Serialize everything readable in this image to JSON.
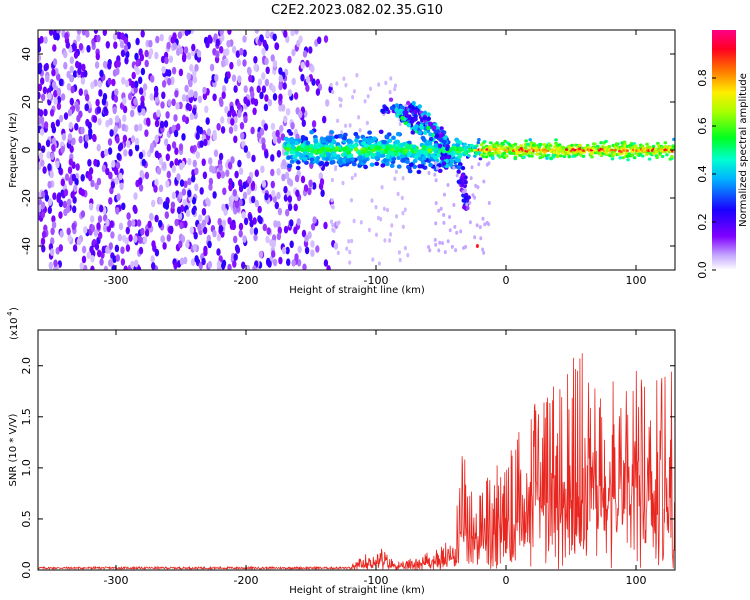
{
  "title": "C2E2.2023.082.02.35.G10",
  "chart_data": [
    {
      "type": "heatmap",
      "xlabel": "Height of straight line (km)",
      "ylabel": "Frequency (Hz)",
      "xlim": [
        -360,
        130
      ],
      "ylim": [
        -50,
        50
      ],
      "xticks": [
        -300,
        -200,
        -100,
        0,
        100
      ],
      "yticks": [
        -40,
        -20,
        0,
        20,
        40
      ],
      "colorbar": {
        "label": "Normalized spectral amplitude",
        "range": [
          0.0,
          1.0
        ],
        "ticks": [
          "0.0",
          "0.2",
          "0.4",
          "0.6",
          "0.8"
        ],
        "colors": [
          "#ffffff",
          "#8000ff",
          "#0000ff",
          "#00ffff",
          "#00ff00",
          "#ffff00",
          "#ff0000",
          "#ff0080"
        ]
      },
      "features": {
        "noise_region_x": [
          -360,
          -130
        ],
        "dominant_band_start_x": -170,
        "dominant_band_center_y": 0,
        "upper_branch": [
          [
            -95,
            17
          ],
          [
            -70,
            17
          ],
          [
            -55,
            10
          ],
          [
            -45,
            2
          ]
        ],
        "lower_branch": [
          [
            -35,
            -10
          ],
          [
            -30,
            -24
          ]
        ],
        "cross_branch": [
          [
            -80,
            15
          ],
          [
            -75,
            12
          ],
          [
            -62,
            8
          ],
          [
            -50,
            0
          ],
          [
            -42,
            -6
          ]
        ]
      }
    },
    {
      "type": "line",
      "xlabel": "Height of straight line (km)",
      "ylabel": "SNR (10 * V/V)",
      "yscale_label": "(x10",
      "yscale_exp": "4",
      "ylabel_prefix": "SNR (10 * V/V)",
      "xlim": [
        -360,
        130
      ],
      "ylim": [
        0,
        2.35
      ],
      "xticks": [
        -300,
        -200,
        -100,
        0,
        100
      ],
      "yticks": [
        "0.0",
        "0.5",
        "1.0",
        "1.5",
        "2.0"
      ],
      "series": [
        {
          "color": "#e8261f",
          "envelope": [
            [
              -360,
              0.03
            ],
            [
              -120,
              0.04
            ],
            [
              -105,
              0.2
            ],
            [
              -95,
              0.25
            ],
            [
              -90,
              0.15
            ],
            [
              -80,
              0.08
            ],
            [
              -65,
              0.2
            ],
            [
              -52,
              0.25
            ],
            [
              -40,
              0.35
            ],
            [
              -33,
              1.3
            ],
            [
              -30,
              0.85
            ],
            [
              -20,
              0.8
            ],
            [
              -10,
              1.05
            ],
            [
              0,
              1.05
            ],
            [
              10,
              1.4
            ],
            [
              20,
              1.6
            ],
            [
              30,
              1.85
            ],
            [
              45,
              1.9
            ],
            [
              60,
              2.3
            ],
            [
              70,
              1.75
            ],
            [
              90,
              2.05
            ],
            [
              110,
              2.0
            ],
            [
              120,
              1.9
            ],
            [
              127,
              2.3
            ],
            [
              130,
              1.0
            ]
          ]
        }
      ]
    }
  ]
}
